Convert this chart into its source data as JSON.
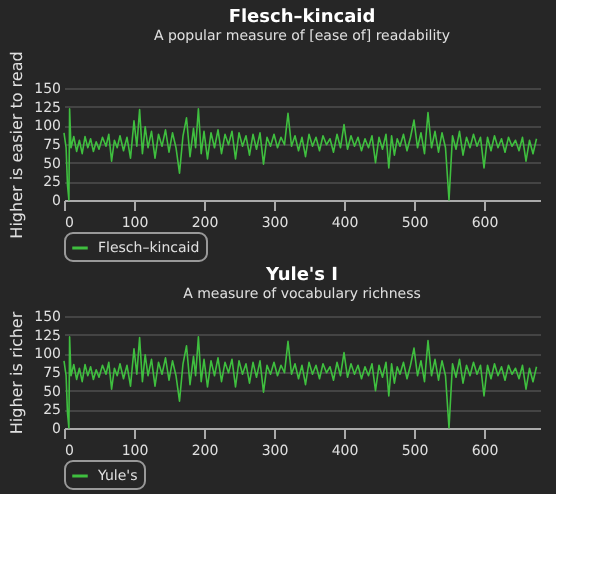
{
  "chart_data": [
    {
      "type": "line",
      "title": "Flesch–kincaid",
      "subtitle": "A popular measure of [ease of] readability",
      "ylabel": "Higher is easier to read",
      "x": [
        0,
        3,
        5,
        7,
        8,
        10,
        14,
        18,
        22,
        26,
        30,
        34,
        38,
        42,
        46,
        50,
        55,
        60,
        64,
        68,
        72,
        76,
        80,
        85,
        90,
        95,
        100,
        104,
        108,
        112,
        116,
        120,
        125,
        130,
        135,
        140,
        145,
        150,
        155,
        160,
        165,
        170,
        175,
        180,
        185,
        188,
        192,
        196,
        200,
        205,
        210,
        215,
        220,
        225,
        230,
        235,
        240,
        245,
        250,
        255,
        260,
        265,
        270,
        275,
        280,
        285,
        290,
        295,
        300,
        305,
        310,
        315,
        320,
        325,
        330,
        335,
        340,
        345,
        350,
        355,
        360,
        365,
        370,
        375,
        380,
        385,
        390,
        395,
        400,
        405,
        410,
        415,
        420,
        425,
        430,
        435,
        440,
        445,
        450,
        455,
        460,
        464,
        468,
        472,
        476,
        480,
        485,
        490,
        495,
        500,
        505,
        510,
        515,
        520,
        525,
        530,
        535,
        540,
        545,
        550,
        555,
        560,
        565,
        570,
        575,
        580,
        585,
        590,
        595,
        600,
        605,
        610,
        615,
        620,
        625,
        630,
        635,
        640,
        645,
        650,
        655,
        660,
        665,
        670,
        675
      ],
      "series": [
        {
          "name": "Flesch–kincaid",
          "color": "#3fbf3f",
          "values": [
            90,
            70,
            20,
            0,
            122,
            70,
            85,
            65,
            80,
            62,
            85,
            70,
            82,
            65,
            78,
            68,
            84,
            72,
            88,
            52,
            80,
            70,
            86,
            66,
            84,
            56,
            106,
            72,
            121,
            62,
            98,
            70,
            92,
            56,
            88,
            72,
            94,
            64,
            90,
            70,
            36,
            86,
            110,
            58,
            96,
            70,
            122,
            62,
            92,
            55,
            90,
            70,
            94,
            62,
            88,
            74,
            92,
            55,
            90,
            72,
            86,
            60,
            88,
            68,
            90,
            48,
            84,
            72,
            88,
            70,
            84,
            74,
            116,
            72,
            86,
            66,
            84,
            58,
            88,
            72,
            84,
            66,
            86,
            74,
            82,
            64,
            88,
            70,
            101,
            68,
            86,
            72,
            84,
            66,
            82,
            70,
            86,
            50,
            84,
            68,
            88,
            43,
            86,
            60,
            82,
            72,
            88,
            66,
            84,
            107,
            70,
            90,
            62,
            117,
            70,
            92,
            64,
            90,
            70,
            0,
            86,
            68,
            92,
            60,
            84,
            70,
            88,
            72,
            84,
            43,
            84,
            66,
            86,
            70,
            82,
            64,
            84,
            72,
            80,
            66,
            84,
            52,
            80,
            62,
            82
          ]
        }
      ],
      "xlim": [
        0,
        680
      ],
      "ylim": [
        0,
        150
      ],
      "xticks": [
        0,
        100,
        200,
        300,
        400,
        500,
        600
      ],
      "yticks": [
        0,
        25,
        50,
        75,
        100,
        125,
        150
      ],
      "grid": "y",
      "legend": "bottom"
    },
    {
      "type": "line",
      "title": "Yule's I",
      "subtitle": "A measure of vocabulary richness",
      "ylabel": "Higher is richer",
      "x": [
        0,
        3,
        5,
        7,
        8,
        10,
        14,
        18,
        22,
        26,
        30,
        34,
        38,
        42,
        46,
        50,
        55,
        60,
        64,
        68,
        72,
        76,
        80,
        85,
        90,
        95,
        100,
        104,
        108,
        112,
        116,
        120,
        125,
        130,
        135,
        140,
        145,
        150,
        155,
        160,
        165,
        170,
        175,
        180,
        185,
        188,
        192,
        196,
        200,
        205,
        210,
        215,
        220,
        225,
        230,
        235,
        240,
        245,
        250,
        255,
        260,
        265,
        270,
        275,
        280,
        285,
        290,
        295,
        300,
        305,
        310,
        315,
        320,
        325,
        330,
        335,
        340,
        345,
        350,
        355,
        360,
        365,
        370,
        375,
        380,
        385,
        390,
        395,
        400,
        405,
        410,
        415,
        420,
        425,
        430,
        435,
        440,
        445,
        450,
        455,
        460,
        464,
        468,
        472,
        476,
        480,
        485,
        490,
        495,
        500,
        505,
        510,
        515,
        520,
        525,
        530,
        535,
        540,
        545,
        550,
        555,
        560,
        565,
        570,
        575,
        580,
        585,
        590,
        595,
        600,
        605,
        610,
        615,
        620,
        625,
        630,
        635,
        640,
        645,
        650,
        655,
        660,
        665,
        670,
        675
      ],
      "series": [
        {
          "name": "Yule's",
          "color": "#3fbf3f",
          "values": [
            90,
            70,
            20,
            0,
            122,
            70,
            85,
            65,
            80,
            62,
            85,
            70,
            82,
            65,
            78,
            68,
            84,
            72,
            88,
            52,
            80,
            70,
            86,
            66,
            84,
            56,
            106,
            72,
            121,
            62,
            98,
            70,
            92,
            56,
            88,
            72,
            94,
            64,
            90,
            70,
            36,
            86,
            110,
            58,
            96,
            70,
            122,
            62,
            92,
            55,
            90,
            70,
            94,
            62,
            88,
            74,
            92,
            55,
            90,
            72,
            86,
            60,
            88,
            68,
            90,
            48,
            84,
            72,
            88,
            70,
            84,
            74,
            116,
            72,
            86,
            66,
            84,
            58,
            88,
            72,
            84,
            66,
            86,
            74,
            82,
            64,
            88,
            70,
            101,
            68,
            86,
            72,
            84,
            66,
            82,
            70,
            86,
            50,
            84,
            68,
            88,
            43,
            86,
            60,
            82,
            72,
            88,
            66,
            84,
            107,
            70,
            90,
            62,
            117,
            70,
            92,
            64,
            90,
            70,
            0,
            86,
            68,
            92,
            60,
            84,
            70,
            88,
            72,
            84,
            43,
            84,
            66,
            86,
            70,
            82,
            64,
            84,
            72,
            80,
            66,
            84,
            52,
            80,
            62,
            82
          ]
        }
      ],
      "xlim": [
        0,
        680
      ],
      "ylim": [
        0,
        150
      ],
      "xticks": [
        0,
        100,
        200,
        300,
        400,
        500,
        600
      ],
      "yticks": [
        0,
        25,
        50,
        75,
        100,
        125,
        150
      ],
      "grid": "y",
      "legend": "bottom"
    }
  ]
}
